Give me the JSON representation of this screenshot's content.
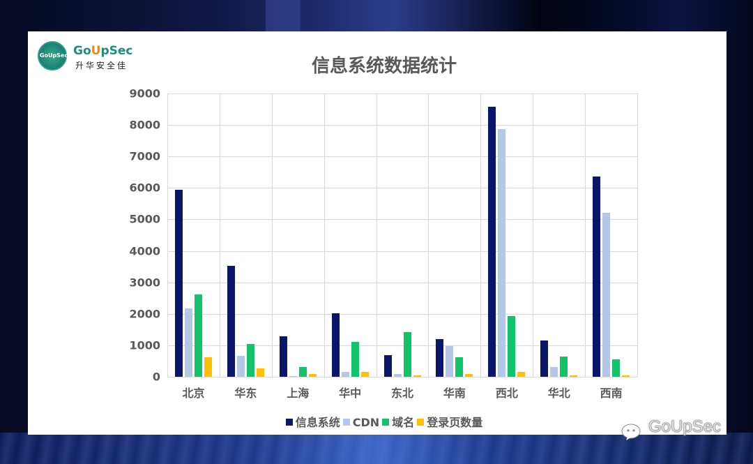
{
  "logo": {
    "badge_text": "GoUpSec",
    "name_part1": "Go",
    "name_u": "U",
    "name_part2": "pSec",
    "subtitle": "升华安全佳"
  },
  "watermark": {
    "icon": "wechat-icon",
    "text": "GoUpSec"
  },
  "colors": {
    "panel_bg": "#ffffff",
    "text": "#595959",
    "grid": "#d9d9d9",
    "series": [
      "#0a1669",
      "#b4c7e7",
      "#12c36a",
      "#ffc000"
    ]
  },
  "chart_data": {
    "type": "bar",
    "title": "信息系统数据统计",
    "xlabel": "",
    "ylabel": "",
    "ylim": [
      0,
      9000
    ],
    "yticks": [
      0,
      1000,
      2000,
      3000,
      4000,
      5000,
      6000,
      7000,
      8000,
      9000
    ],
    "grid": true,
    "legend_position": "bottom",
    "categories": [
      "北京",
      "华东",
      "上海",
      "华中",
      "东北",
      "华南",
      "西北",
      "华北",
      "西南"
    ],
    "series": [
      {
        "name": "信息系统",
        "color": "#0a1669",
        "values": [
          5940,
          3520,
          1290,
          2010,
          690,
          1200,
          8580,
          1160,
          6360
        ]
      },
      {
        "name": "CDN",
        "color": "#b4c7e7",
        "values": [
          2170,
          665,
          30,
          150,
          80,
          980,
          7870,
          300,
          5210
        ]
      },
      {
        "name": "域名",
        "color": "#12c36a",
        "values": [
          2620,
          1040,
          310,
          1100,
          1420,
          620,
          1930,
          650,
          560
        ]
      },
      {
        "name": "登录页数量",
        "color": "#ffc000",
        "values": [
          620,
          265,
          90,
          150,
          40,
          80,
          150,
          50,
          50
        ]
      }
    ]
  }
}
